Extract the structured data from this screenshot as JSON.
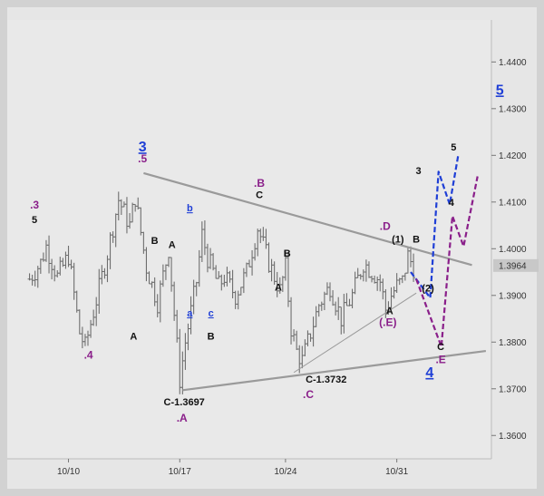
{
  "chart_data": {
    "type": "ohlc",
    "colors": {
      "background": "#e6e6e6",
      "frame": "#d2d2d2",
      "bars": "#6e6e6e",
      "trendline": "#9a9a9a",
      "blue": "#1f3fd6",
      "purple": "#8a1f8a",
      "black": "#111111",
      "price_badge": "#c8c8c8"
    },
    "y_axis": {
      "ylim": [
        1.355,
        1.449
      ],
      "ticks": [
        "1.4400",
        "1.4300",
        "1.4200",
        "1.4100",
        "1.4000",
        "1.3900",
        "1.3800",
        "1.3700",
        "1.3600"
      ],
      "last_price": "1.3964",
      "last_price_value": 1.3964
    },
    "x_axis": {
      "labels": [
        "10/10",
        "10/17",
        "10/24",
        "10/31"
      ],
      "label_positions": [
        7,
        27,
        46,
        66
      ]
    },
    "xlim": [
      -4,
      83
    ],
    "ohlc_keypoints": [
      [
        0,
        1.3935
      ],
      [
        2,
        1.397
      ],
      [
        3,
        1.4005
      ],
      [
        5,
        1.394
      ],
      [
        7,
        1.3985
      ],
      [
        9,
        1.382
      ],
      [
        10,
        1.379
      ],
      [
        12,
        1.389
      ],
      [
        14,
        1.399
      ],
      [
        16,
        1.4105
      ],
      [
        18,
        1.405
      ],
      [
        19,
        1.411
      ],
      [
        21,
        1.396
      ],
      [
        23,
        1.3885
      ],
      [
        25,
        1.4
      ],
      [
        27,
        1.372
      ],
      [
        28,
        1.38
      ],
      [
        30,
        1.393
      ],
      [
        31,
        1.403
      ],
      [
        32,
        1.398
      ],
      [
        34,
        1.392
      ],
      [
        35,
        1.394
      ],
      [
        37,
        1.39
      ],
      [
        39,
        1.395
      ],
      [
        41,
        1.4045
      ],
      [
        43,
        1.397
      ],
      [
        45,
        1.391
      ],
      [
        46,
        1.396
      ],
      [
        47,
        1.383
      ],
      [
        48,
        1.378
      ],
      [
        49,
        1.376
      ],
      [
        50,
        1.38
      ],
      [
        52,
        1.388
      ],
      [
        54,
        1.392
      ],
      [
        56,
        1.385
      ],
      [
        58,
        1.39
      ],
      [
        60,
        1.397
      ],
      [
        62,
        1.3945
      ],
      [
        63,
        1.393
      ],
      [
        64,
        1.387
      ],
      [
        65,
        1.39
      ],
      [
        66,
        1.392
      ],
      [
        67,
        1.393
      ],
      [
        68,
        1.3985
      ],
      [
        69,
        1.396
      ]
    ],
    "trendlines": [
      {
        "name": "upper-resistance",
        "from": [
          20.5,
          1.4162
        ],
        "to": [
          79.5,
          1.3965
        ]
      },
      {
        "name": "lower-support",
        "from": [
          27.5,
          1.3697
        ],
        "to": [
          82,
          1.3781
        ]
      },
      {
        "name": "inner-support",
        "from": [
          47.5,
          1.3735
        ],
        "to": [
          69.5,
          1.3905
        ]
      }
    ],
    "projections": [
      {
        "name": "blue-path",
        "color": "blue",
        "points": [
          [
            68.5,
            1.395
          ],
          [
            72,
            1.3895
          ],
          [
            73.5,
            1.4165
          ],
          [
            75.5,
            1.4095
          ],
          [
            77,
            1.4198
          ]
        ]
      },
      {
        "name": "purple-path",
        "color": "purple",
        "points": [
          [
            69.5,
            1.3935
          ],
          [
            74,
            1.379
          ],
          [
            76,
            1.407
          ],
          [
            78,
            1.4005
          ],
          [
            80.5,
            1.4155
          ]
        ]
      }
    ],
    "annotations": [
      {
        "text": "3",
        "x": 20.3,
        "y": 1.4208,
        "color": "blue",
        "size": 16,
        "underline": true
      },
      {
        "text": ".5",
        "x": 20.3,
        "y": 1.4185,
        "color": "purple",
        "size": 12
      },
      {
        "text": ".3",
        "x": 0.9,
        "y": 1.4086,
        "color": "purple",
        "size": 12
      },
      {
        "text": "5",
        "x": 0.9,
        "y": 1.4055,
        "color": "black",
        "size": 11
      },
      {
        "text": ".4",
        "x": 10.6,
        "y": 1.3765,
        "color": "purple",
        "size": 12
      },
      {
        "text": "A",
        "x": 18.7,
        "y": 1.3805,
        "color": "black",
        "size": 11
      },
      {
        "text": "B",
        "x": 22.5,
        "y": 1.401,
        "color": "black",
        "size": 11
      },
      {
        "text": "A",
        "x": 25.6,
        "y": 1.4002,
        "color": "black",
        "size": 11
      },
      {
        "text": "b",
        "x": 28.8,
        "y": 1.408,
        "color": "blue",
        "size": 11,
        "underline": true
      },
      {
        "text": "a",
        "x": 28.8,
        "y": 1.3855,
        "color": "blue",
        "size": 11,
        "underline": true
      },
      {
        "text": "c",
        "x": 32.6,
        "y": 1.3855,
        "color": "blue",
        "size": 11,
        "underline": true
      },
      {
        "text": "B",
        "x": 32.6,
        "y": 1.3805,
        "color": "black",
        "size": 11
      },
      {
        "text": "C",
        "x": 41.3,
        "y": 1.4108,
        "color": "black",
        "size": 11
      },
      {
        "text": ".B",
        "x": 41.3,
        "y": 1.4133,
        "color": "purple",
        "size": 12
      },
      {
        "text": "B",
        "x": 46.3,
        "y": 1.3983,
        "color": "black",
        "size": 11
      },
      {
        "text": "A",
        "x": 44.7,
        "y": 1.391,
        "color": "black",
        "size": 11
      },
      {
        "text": "C-1.3697",
        "x": 27.8,
        "y": 1.3665,
        "color": "black",
        "size": 11
      },
      {
        "text": ".A",
        "x": 27.4,
        "y": 1.363,
        "color": "purple",
        "size": 12
      },
      {
        "text": "C-1.3732",
        "x": 53.3,
        "y": 1.3713,
        "color": "black",
        "size": 11
      },
      {
        "text": ".C",
        "x": 50.1,
        "y": 1.368,
        "color": "purple",
        "size": 12
      },
      {
        "text": ".D",
        "x": 63.9,
        "y": 1.404,
        "color": "purple",
        "size": 12
      },
      {
        "text": "(1)",
        "x": 66.2,
        "y": 1.4013,
        "color": "black",
        "size": 11
      },
      {
        "text": "B",
        "x": 69.5,
        "y": 1.4013,
        "color": "black",
        "size": 11
      },
      {
        "text": "A",
        "x": 64.7,
        "y": 1.386,
        "color": "black",
        "size": 11
      },
      {
        "text": "(.E)",
        "x": 64.4,
        "y": 1.3835,
        "color": "purple",
        "size": 12
      },
      {
        "text": "(2)",
        "x": 71.6,
        "y": 1.3908,
        "color": "black",
        "size": 11
      },
      {
        "text": "C",
        "x": 73.9,
        "y": 1.3783,
        "color": "black",
        "size": 11
      },
      {
        "text": ".E",
        "x": 73.9,
        "y": 1.3755,
        "color": "purple",
        "size": 12
      },
      {
        "text": "4",
        "x": 71.9,
        "y": 1.3725,
        "color": "blue",
        "size": 16,
        "underline": true
      },
      {
        "text": "3",
        "x": 69.9,
        "y": 1.416,
        "color": "black",
        "size": 11
      },
      {
        "text": "4",
        "x": 75.8,
        "y": 1.4092,
        "color": "black",
        "size": 11
      },
      {
        "text": "5",
        "x": 76.2,
        "y": 1.421,
        "color": "black",
        "size": 11
      },
      {
        "text": "5",
        "x": 84.5,
        "y": 1.433,
        "color": "blue",
        "size": 16,
        "underline": true
      }
    ]
  }
}
